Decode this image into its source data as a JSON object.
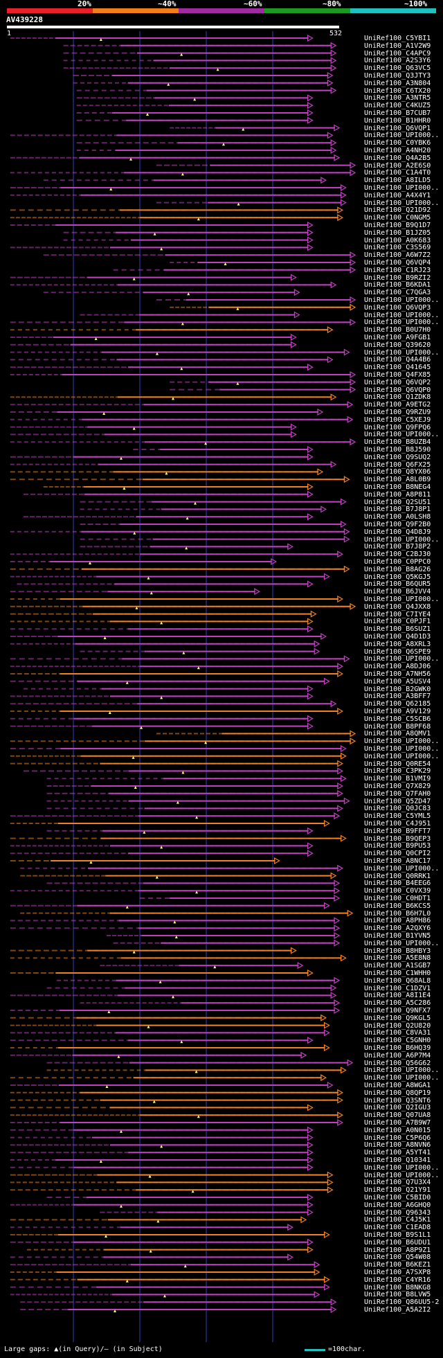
{
  "scale": {
    "labels": [
      "20%",
      "~40%",
      "~60%",
      "~80%",
      "~100%"
    ],
    "colors": [
      "#e8202a",
      "#f07c1c",
      "#a02aa0",
      "#1c9a20",
      "#20c0c0"
    ]
  },
  "query": {
    "title": "AV439228",
    "start": "1",
    "end": "532"
  },
  "colors": {
    "orange": "#f08020",
    "magenta": "#c040c0",
    "gridline": "#3a3ac8",
    "rule": "#ffffff"
  },
  "hits": [
    {
      "name": "UniRef100_C5YBI1",
      "c": "m",
      "s": 0.01,
      "e": 0.92
    },
    {
      "name": "UniRef100_A1V2W9",
      "c": "m",
      "s": 0.17,
      "e": 0.99
    },
    {
      "name": "UniRef100_C4APC9",
      "c": "m",
      "s": 0.17,
      "e": 0.99
    },
    {
      "name": "UniRef100_A2S3Y6",
      "c": "m",
      "s": 0.17,
      "e": 0.99
    },
    {
      "name": "UniRef100_Q63VC5",
      "c": "m",
      "s": 0.17,
      "e": 0.99
    },
    {
      "name": "UniRef100_Q3JTY3",
      "c": "m",
      "s": 0.2,
      "e": 0.98
    },
    {
      "name": "UniRef100_A3N804",
      "c": "m",
      "s": 0.2,
      "e": 0.98
    },
    {
      "name": "UniRef100_C6TX20",
      "c": "m",
      "s": 0.21,
      "e": 0.99
    },
    {
      "name": "UniRef100_A3NTR5",
      "c": "m",
      "s": 0.21,
      "e": 0.92
    },
    {
      "name": "UniRef100_C4KUZ5",
      "c": "m",
      "s": 0.21,
      "e": 0.92
    },
    {
      "name": "UniRef100_B7CUB7",
      "c": "m",
      "s": 0.21,
      "e": 0.92
    },
    {
      "name": "UniRef100_B1HHR0",
      "c": "m",
      "s": 0.21,
      "e": 0.92
    },
    {
      "name": "UniRef100_Q6VQP1",
      "c": "m",
      "s": 0.49,
      "e": 1.0
    },
    {
      "name": "UniRef100_UPI000..",
      "c": "m",
      "s": 0.01,
      "e": 0.98
    },
    {
      "name": "UniRef100_C0YBK6",
      "c": "m",
      "s": 0.21,
      "e": 0.99
    },
    {
      "name": "UniRef100_A4NH20",
      "c": "m",
      "s": 0.21,
      "e": 0.99
    },
    {
      "name": "UniRef100_Q4A2B5",
      "c": "m",
      "s": 0.01,
      "e": 1.0
    },
    {
      "name": "UniRef100_A2E6S0",
      "c": "m",
      "s": 0.45,
      "e": 1.06
    },
    {
      "name": "UniRef100_C1A4T0",
      "c": "m",
      "s": 0.01,
      "e": 1.06
    },
    {
      "name": "UniRef100_A8ILD5",
      "c": "m",
      "s": 0.11,
      "e": 0.96
    },
    {
      "name": "UniRef100_UPI000..",
      "c": "m",
      "s": 0.01,
      "e": 1.02
    },
    {
      "name": "UniRef100_A4X4Y1",
      "c": "m",
      "s": 0.01,
      "e": 1.02
    },
    {
      "name": "UniRef100_UPI000..",
      "c": "m",
      "s": 0.45,
      "e": 1.02
    },
    {
      "name": "UniRef100_Q21D92",
      "c": "o",
      "s": 0.01,
      "e": 1.01
    },
    {
      "name": "UniRef100_C0NGM5",
      "c": "o",
      "s": 0.01,
      "e": 1.01
    },
    {
      "name": "UniRef100_B9Q1D7",
      "c": "m",
      "s": 0.01,
      "e": 0.92
    },
    {
      "name": "UniRef100_B1JZ05",
      "c": "m",
      "s": 0.17,
      "e": 0.92
    },
    {
      "name": "UniRef100_A0K683",
      "c": "m",
      "s": 0.17,
      "e": 0.92
    },
    {
      "name": "UniRef100_C3S569",
      "c": "m",
      "s": 0.01,
      "e": 0.92
    },
    {
      "name": "UniRef100_A6W7Z2",
      "c": "m",
      "s": 0.11,
      "e": 1.05
    },
    {
      "name": "UniRef100_Q6VQP4",
      "c": "m",
      "s": 0.49,
      "e": 1.06
    },
    {
      "name": "UniRef100_C1RJ23",
      "c": "m",
      "s": 0.32,
      "e": 1.06
    },
    {
      "name": "UniRef100_B9RZI2",
      "c": "m",
      "s": 0.01,
      "e": 0.87
    },
    {
      "name": "UniRef100_B6KDA1",
      "c": "m",
      "s": 0.01,
      "e": 0.99
    },
    {
      "name": "UniRef100_C7QGA3",
      "c": "m",
      "s": 0.11,
      "e": 0.88
    },
    {
      "name": "UniRef100_UPI000..",
      "c": "m",
      "s": 0.45,
      "e": 1.06
    },
    {
      "name": "UniRef100_Q6VQP3",
      "c": "o",
      "s": 0.49,
      "e": 1.06
    },
    {
      "name": "UniRef100_UPI000..",
      "c": "m",
      "s": 0.22,
      "e": 0.88
    },
    {
      "name": "UniRef100_UPI000..",
      "c": "m",
      "s": 0.01,
      "e": 1.06
    },
    {
      "name": "UniRef100_B0U7H0",
      "c": "o",
      "s": 0.01,
      "e": 0.98
    },
    {
      "name": "UniRef100_A9FGB1",
      "c": "m",
      "s": 0.01,
      "e": 0.87
    },
    {
      "name": "UniRef100_Q39620",
      "c": "m",
      "s": 0.01,
      "e": 0.87
    },
    {
      "name": "UniRef100_UPI000..",
      "c": "m",
      "s": 0.01,
      "e": 1.03
    },
    {
      "name": "UniRef100_Q4A4B6",
      "c": "m",
      "s": 0.01,
      "e": 0.98
    },
    {
      "name": "UniRef100_Q41645",
      "c": "m",
      "s": 0.01,
      "e": 0.92
    },
    {
      "name": "UniRef100_Q4FX85",
      "c": "m",
      "s": 0.01,
      "e": 1.06
    },
    {
      "name": "UniRef100_Q6VQP2",
      "c": "m",
      "s": 0.49,
      "e": 1.06
    },
    {
      "name": "UniRef100_Q6VQP0",
      "c": "m",
      "s": 0.49,
      "e": 1.06
    },
    {
      "name": "UniRef100_Q1ZDK8",
      "c": "o",
      "s": 0.01,
      "e": 0.99
    },
    {
      "name": "UniRef100_A9ETG2",
      "c": "m",
      "s": 0.01,
      "e": 1.04
    },
    {
      "name": "UniRef100_Q9RZU9",
      "c": "m",
      "s": 0.01,
      "e": 0.95
    },
    {
      "name": "UniRef100_C5XEJ9",
      "c": "m",
      "s": 0.01,
      "e": 1.04
    },
    {
      "name": "UniRef100_Q9FPQ6",
      "c": "m",
      "s": 0.01,
      "e": 0.87
    },
    {
      "name": "UniRef100_UPI000..",
      "c": "m",
      "s": 0.01,
      "e": 0.87
    },
    {
      "name": "UniRef100_B8UZB4",
      "c": "m",
      "s": 0.01,
      "e": 1.06
    },
    {
      "name": "UniRef100_B8J590",
      "c": "m",
      "s": 0.38,
      "e": 0.92
    },
    {
      "name": "UniRef100_Q9SUQ2",
      "c": "m",
      "s": 0.01,
      "e": 0.92
    },
    {
      "name": "UniRef100_Q6FX25",
      "c": "m",
      "s": 0.01,
      "e": 0.99
    },
    {
      "name": "UniRef100_Q8YX06",
      "c": "o",
      "s": 0.01,
      "e": 0.95
    },
    {
      "name": "UniRef100_A8L0B9",
      "c": "o",
      "s": 0.01,
      "e": 1.03
    },
    {
      "name": "UniRef100_B8NEG4",
      "c": "o",
      "s": 0.11,
      "e": 0.92
    },
    {
      "name": "UniRef100_A8P811",
      "c": "m",
      "s": 0.05,
      "e": 0.92
    },
    {
      "name": "UniRef100_Q2SU51",
      "c": "m",
      "s": 0.22,
      "e": 1.02
    },
    {
      "name": "UniRef100_B7J8P1",
      "c": "m",
      "s": 0.22,
      "e": 0.96
    },
    {
      "name": "UniRef100_A0LSH8",
      "c": "m",
      "s": 0.05,
      "e": 0.92
    },
    {
      "name": "UniRef100_Q9F2B0",
      "c": "m",
      "s": 0.22,
      "e": 1.02
    },
    {
      "name": "UniRef100_Q4D8J9",
      "c": "m",
      "s": 0.01,
      "e": 1.03
    },
    {
      "name": "UniRef100_UPI000..",
      "c": "m",
      "s": 0.22,
      "e": 1.03
    },
    {
      "name": "UniRef100_B7J8P2",
      "c": "m",
      "s": 0.22,
      "e": 0.86
    },
    {
      "name": "UniRef100_C2BJ30",
      "c": "m",
      "s": 0.01,
      "e": 1.01
    },
    {
      "name": "UniRef100_C0PPC0",
      "c": "m",
      "s": 0.01,
      "e": 0.81
    },
    {
      "name": "UniRef100_B8AG26",
      "c": "o",
      "s": 0.01,
      "e": 1.03
    },
    {
      "name": "UniRef100_Q5KGJ5",
      "c": "m",
      "s": 0.01,
      "e": 0.97
    },
    {
      "name": "UniRef100_B6QUR5",
      "c": "m",
      "s": 0.03,
      "e": 0.92
    },
    {
      "name": "UniRef100_B6JVV4",
      "c": "m",
      "s": 0.01,
      "e": 0.76
    },
    {
      "name": "UniRef100_UPI000..",
      "c": "o",
      "s": 0.01,
      "e": 1.01
    },
    {
      "name": "UniRef100_Q4JXX8",
      "c": "o",
      "s": 0.01,
      "e": 1.06
    },
    {
      "name": "UniRef100_C7IYE4",
      "c": "o",
      "s": 0.01,
      "e": 0.93
    },
    {
      "name": "UniRef100_C0PJF1",
      "c": "o",
      "s": 0.01,
      "e": 0.92
    },
    {
      "name": "UniRef100_B6SUZ1",
      "c": "m",
      "s": 0.01,
      "e": 0.92
    },
    {
      "name": "UniRef100_Q4D1D3",
      "c": "m",
      "s": 0.01,
      "e": 0.96
    },
    {
      "name": "UniRef100_A8XRL3",
      "c": "m",
      "s": 0.01,
      "e": 0.94
    },
    {
      "name": "UniRef100_Q6SPE9",
      "c": "m",
      "s": 0.22,
      "e": 0.94
    },
    {
      "name": "UniRef100_UPI000..",
      "c": "m",
      "s": 0.01,
      "e": 1.03
    },
    {
      "name": "UniRef100_A8DJ06",
      "c": "m",
      "s": 0.01,
      "e": 1.01
    },
    {
      "name": "UniRef100_A7NH56",
      "c": "o",
      "s": 0.01,
      "e": 1.01
    },
    {
      "name": "UniRef100_A5USV4",
      "c": "m",
      "s": 0.01,
      "e": 0.97
    },
    {
      "name": "UniRef100_B2GWK0",
      "c": "m",
      "s": 0.05,
      "e": 0.92
    },
    {
      "name": "UniRef100_A3BFF7",
      "c": "m",
      "s": 0.01,
      "e": 0.92
    },
    {
      "name": "UniRef100_Q62185",
      "c": "m",
      "s": 0.01,
      "e": 0.99
    },
    {
      "name": "UniRef100_A9V129",
      "c": "o",
      "s": 0.01,
      "e": 1.01
    },
    {
      "name": "UniRef100_C5SCB6",
      "c": "m",
      "s": 0.01,
      "e": 0.92
    },
    {
      "name": "UniRef100_B8PF68",
      "c": "m",
      "s": 0.01,
      "e": 0.92
    },
    {
      "name": "UniRef100_A8QMV1",
      "c": "o",
      "s": 0.45,
      "e": 1.05
    },
    {
      "name": "UniRef100_UPI000..",
      "c": "o",
      "s": 0.01,
      "e": 1.05
    },
    {
      "name": "UniRef100_UPI000..",
      "c": "m",
      "s": 0.01,
      "e": 1.02
    },
    {
      "name": "UniRef100_UPI000..",
      "c": "o",
      "s": 0.01,
      "e": 1.02
    },
    {
      "name": "UniRef100_Q0RE54",
      "c": "o",
      "s": 0.01,
      "e": 1.01
    },
    {
      "name": "UniRef100_C3PK29",
      "c": "m",
      "s": 0.05,
      "e": 1.01
    },
    {
      "name": "UniRef100_B1VMI9",
      "c": "m",
      "s": 0.12,
      "e": 1.02
    },
    {
      "name": "UniRef100_Q7X829",
      "c": "m",
      "s": 0.12,
      "e": 1.01
    },
    {
      "name": "UniRef100_Q7FAH0",
      "c": "m",
      "s": 0.12,
      "e": 1.01
    },
    {
      "name": "UniRef100_Q5ZD47",
      "c": "m",
      "s": 0.12,
      "e": 1.03
    },
    {
      "name": "UniRef100_Q0JC83",
      "c": "m",
      "s": 0.12,
      "e": 1.01
    },
    {
      "name": "UniRef100_C5YML5",
      "c": "m",
      "s": 0.01,
      "e": 1.0
    },
    {
      "name": "UniRef100_C4J951",
      "c": "o",
      "s": 0.01,
      "e": 0.97
    },
    {
      "name": "UniRef100_B9FFT7",
      "c": "m",
      "s": 0.12,
      "e": 0.92
    },
    {
      "name": "UniRef100_B9QEP3",
      "c": "o",
      "s": 0.01,
      "e": 1.02
    },
    {
      "name": "UniRef100_B9PU53",
      "c": "m",
      "s": 0.01,
      "e": 0.92
    },
    {
      "name": "UniRef100_Q0CPI2",
      "c": "m",
      "s": 0.01,
      "e": 0.92
    },
    {
      "name": "UniRef100_A8NC17",
      "c": "o",
      "s": 0.01,
      "e": 0.82
    },
    {
      "name": "UniRef100_UPI000..",
      "c": "m",
      "s": 0.04,
      "e": 1.01
    },
    {
      "name": "UniRef100_Q0RRK1",
      "c": "o",
      "s": 0.04,
      "e": 0.99
    },
    {
      "name": "UniRef100_B4EEG6",
      "c": "m",
      "s": 0.12,
      "e": 1.0
    },
    {
      "name": "UniRef100_C0VX39",
      "c": "m",
      "s": 0.01,
      "e": 1.0
    },
    {
      "name": "UniRef100_C0HDT1",
      "c": "m",
      "s": 0.4,
      "e": 1.0
    },
    {
      "name": "UniRef100_B6KCS5",
      "c": "m",
      "s": 0.01,
      "e": 0.97
    },
    {
      "name": "UniRef100_B6H7L0",
      "c": "o",
      "s": 0.04,
      "e": 1.04
    },
    {
      "name": "UniRef100_A8PH86",
      "c": "m",
      "s": 0.01,
      "e": 1.0
    },
    {
      "name": "UniRef100_A2QXY6",
      "c": "m",
      "s": 0.01,
      "e": 1.0
    },
    {
      "name": "UniRef100_B1YVN5",
      "c": "m",
      "s": 0.3,
      "e": 1.0
    },
    {
      "name": "UniRef100_UPI000..",
      "c": "m",
      "s": 0.32,
      "e": 1.0
    },
    {
      "name": "UniRef100_B8HBY3",
      "c": "o",
      "s": 0.01,
      "e": 0.87
    },
    {
      "name": "UniRef100_A5E8N8",
      "c": "o",
      "s": 0.01,
      "e": 1.02
    },
    {
      "name": "UniRef100_A1SGB7",
      "c": "m",
      "s": 0.28,
      "e": 0.89
    },
    {
      "name": "UniRef100_C1WHH0",
      "c": "o",
      "s": 0.01,
      "e": 0.92
    },
    {
      "name": "UniRef100_Q68AL8",
      "c": "m",
      "s": 0.15,
      "e": 1.0
    },
    {
      "name": "UniRef100_C1DZV1",
      "c": "m",
      "s": 0.12,
      "e": 0.99
    },
    {
      "name": "UniRef100_A8I1E4",
      "c": "m",
      "s": 0.01,
      "e": 0.99
    },
    {
      "name": "UniRef100_A5C286",
      "c": "m",
      "s": 0.22,
      "e": 1.0
    },
    {
      "name": "UniRef100_Q9NFX7",
      "c": "m",
      "s": 0.01,
      "e": 1.0
    },
    {
      "name": "UniRef100_Q9KGL5",
      "c": "o",
      "s": 0.01,
      "e": 0.96
    },
    {
      "name": "UniRef100_Q2U820",
      "c": "o",
      "s": 0.01,
      "e": 0.97
    },
    {
      "name": "UniRef100_C8VA31",
      "c": "m",
      "s": 0.01,
      "e": 0.97
    },
    {
      "name": "UniRef100_C5GNH0",
      "c": "m",
      "s": 0.01,
      "e": 0.92
    },
    {
      "name": "UniRef100_B6HQ39",
      "c": "o",
      "s": 0.01,
      "e": 0.97
    },
    {
      "name": "UniRef100_A6P7M4",
      "c": "m",
      "s": 0.01,
      "e": 0.9
    },
    {
      "name": "UniRef100_Q56G62",
      "c": "m",
      "s": 0.12,
      "e": 1.04
    },
    {
      "name": "UniRef100_UPI000..",
      "c": "o",
      "s": 0.12,
      "e": 1.02
    },
    {
      "name": "UniRef100_UPI000..",
      "c": "o",
      "s": 0.01,
      "e": 0.96
    },
    {
      "name": "UniRef100_A8WGA1",
      "c": "m",
      "s": 0.01,
      "e": 0.98
    },
    {
      "name": "UniRef100_Q8QP19",
      "c": "o",
      "s": 0.01,
      "e": 1.01
    },
    {
      "name": "UniRef100_Q3SNT6",
      "c": "o",
      "s": 0.01,
      "e": 1.01
    },
    {
      "name": "UniRef100_Q2IGU3",
      "c": "o",
      "s": 0.01,
      "e": 0.92
    },
    {
      "name": "UniRef100_Q07UA8",
      "c": "o",
      "s": 0.01,
      "e": 1.01
    },
    {
      "name": "UniRef100_A7B9W7",
      "c": "m",
      "s": 0.01,
      "e": 1.01
    },
    {
      "name": "UniRef100_A0N015",
      "c": "m",
      "s": 0.01,
      "e": 0.92
    },
    {
      "name": "UniRef100_C5P6Q6",
      "c": "m",
      "s": 0.01,
      "e": 0.92
    },
    {
      "name": "UniRef100_A8NVN6",
      "c": "m",
      "s": 0.01,
      "e": 0.92
    },
    {
      "name": "UniRef100_A5YT41",
      "c": "m",
      "s": 0.01,
      "e": 0.92
    },
    {
      "name": "UniRef100_Q10341",
      "c": "m",
      "s": 0.01,
      "e": 0.92
    },
    {
      "name": "UniRef100_UPI000..",
      "c": "m",
      "s": 0.01,
      "e": 0.92
    },
    {
      "name": "UniRef100_UPI000..",
      "c": "o",
      "s": 0.01,
      "e": 0.98
    },
    {
      "name": "UniRef100_Q7U3X4",
      "c": "o",
      "s": 0.01,
      "e": 0.98
    },
    {
      "name": "UniRef100_Q21Y91",
      "c": "o",
      "s": 0.01,
      "e": 0.98
    },
    {
      "name": "UniRef100_C5BID0",
      "c": "m",
      "s": 0.12,
      "e": 0.92
    },
    {
      "name": "UniRef100_A6GHQ0",
      "c": "m",
      "s": 0.01,
      "e": 0.92
    },
    {
      "name": "UniRef100_Q96343",
      "c": "m",
      "s": 0.28,
      "e": 0.92
    },
    {
      "name": "UniRef100_C4J5K1",
      "c": "o",
      "s": 0.01,
      "e": 0.9
    },
    {
      "name": "UniRef100_C1EAD8",
      "c": "m",
      "s": 0.01,
      "e": 0.86
    },
    {
      "name": "UniRef100_B9S1L1",
      "c": "o",
      "s": 0.01,
      "e": 0.97
    },
    {
      "name": "UniRef100_B6UDU1",
      "c": "m",
      "s": 0.01,
      "e": 0.92
    },
    {
      "name": "UniRef100_A8P9Z1",
      "c": "o",
      "s": 0.06,
      "e": 0.92
    },
    {
      "name": "UniRef100_Q54W08",
      "c": "m",
      "s": 0.01,
      "e": 0.86
    },
    {
      "name": "UniRef100_B6KEZ1",
      "c": "m",
      "s": 0.01,
      "e": 0.94
    },
    {
      "name": "UniRef100_A7SXP8",
      "c": "o",
      "s": 0.01,
      "e": 0.94
    },
    {
      "name": "UniRef100_C4YR16",
      "c": "o",
      "s": 0.01,
      "e": 0.97
    },
    {
      "name": "UniRef100_B8NKG8",
      "c": "m",
      "s": 0.01,
      "e": 0.97
    },
    {
      "name": "UniRef100_B8LVW5",
      "c": "m",
      "s": 0.01,
      "e": 0.94
    },
    {
      "name": "UniRef100_Q86UU5-2",
      "c": "m",
      "s": 0.04,
      "e": 0.99
    },
    {
      "name": "UniRef100_A5A2I2",
      "c": "m",
      "s": 0.04,
      "e": 0.99
    }
  ],
  "legend": {
    "gaps_text": "Large gaps: ▲(in Query)/— (in Subject)",
    "scale_text": "=100char."
  }
}
